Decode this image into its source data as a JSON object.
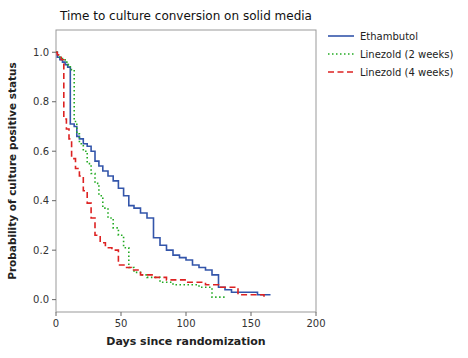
{
  "chart_data": {
    "type": "step",
    "title": "Time to culture conversion on solid media",
    "x_label": "Days since randomization",
    "y_label": "Probability of culture positive status",
    "xlim": [
      0,
      200
    ],
    "ylim": [
      -0.05,
      1.09
    ],
    "xticks": [
      0,
      50,
      100,
      150,
      200
    ],
    "yticks": [
      {
        "value": 0.0,
        "label": "0.0"
      },
      0.2,
      0.4,
      0.6,
      0.8,
      {
        "value": 1.0,
        "label": "1.0"
      }
    ],
    "grid": false,
    "legend": "right",
    "series": [
      {
        "name": "Ethambutol",
        "color": "#3355aa",
        "line_style": "solid",
        "x": [
          0,
          1,
          3,
          5,
          7,
          9,
          11,
          14,
          16,
          18,
          21,
          24,
          27,
          30,
          33,
          36,
          40,
          44,
          48,
          52,
          56,
          60,
          65,
          70,
          75,
          80,
          85,
          90,
          95,
          100,
          105,
          110,
          115,
          120,
          125,
          130,
          135,
          145,
          155,
          165
        ],
        "values": [
          1.0,
          0.98,
          0.97,
          0.96,
          0.95,
          0.94,
          0.71,
          0.7,
          0.66,
          0.65,
          0.63,
          0.62,
          0.6,
          0.56,
          0.54,
          0.52,
          0.5,
          0.48,
          0.45,
          0.42,
          0.38,
          0.37,
          0.35,
          0.33,
          0.25,
          0.22,
          0.2,
          0.18,
          0.17,
          0.16,
          0.14,
          0.13,
          0.12,
          0.1,
          0.05,
          0.04,
          0.03,
          0.03,
          0.02,
          0.02
        ]
      },
      {
        "name": "Linezold (2 weeks)",
        "color": "#22aa22",
        "line_style": "dotted",
        "x": [
          0,
          1,
          3,
          5,
          7,
          9,
          11,
          14,
          16,
          18,
          21,
          24,
          27,
          30,
          33,
          36,
          40,
          44,
          48,
          52,
          56,
          60,
          65,
          70,
          80,
          90,
          100,
          110,
          120,
          130
        ],
        "values": [
          1.0,
          0.99,
          0.98,
          0.97,
          0.96,
          0.95,
          0.93,
          0.72,
          0.67,
          0.63,
          0.6,
          0.55,
          0.51,
          0.47,
          0.42,
          0.37,
          0.33,
          0.29,
          0.26,
          0.21,
          0.13,
          0.11,
          0.1,
          0.09,
          0.07,
          0.06,
          0.06,
          0.05,
          0.01,
          0.01
        ]
      },
      {
        "name": "Linezold (4 weeks)",
        "color": "#dd2222",
        "line_style": "dashed",
        "x": [
          0,
          1,
          2,
          4,
          6,
          8,
          10,
          12,
          15,
          18,
          21,
          24,
          27,
          30,
          34,
          38,
          43,
          48,
          53,
          58,
          65,
          75,
          85,
          100,
          115,
          125,
          140,
          155,
          160
        ],
        "values": [
          1.0,
          0.99,
          0.98,
          0.97,
          0.73,
          0.69,
          0.65,
          0.57,
          0.53,
          0.5,
          0.44,
          0.39,
          0.33,
          0.26,
          0.23,
          0.21,
          0.2,
          0.14,
          0.13,
          0.12,
          0.1,
          0.09,
          0.08,
          0.07,
          0.06,
          0.05,
          0.02,
          0.02,
          0.01
        ]
      }
    ]
  }
}
